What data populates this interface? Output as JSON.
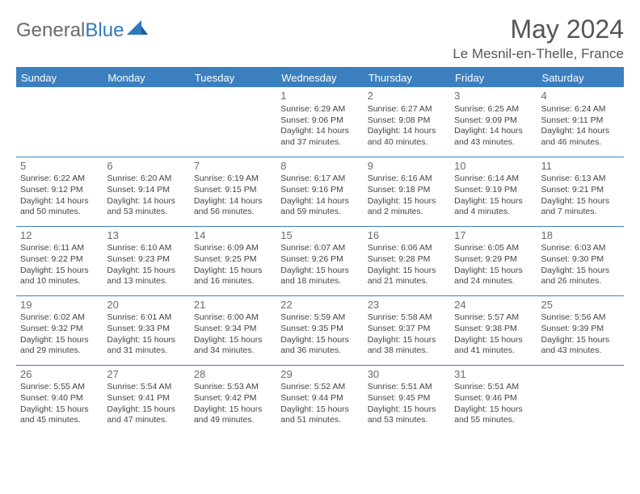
{
  "logo": {
    "general": "General",
    "blue": "Blue"
  },
  "title": "May 2024",
  "location": "Le Mesnil-en-Thelle, France",
  "header_bg": "#3b7fbf",
  "header_fg": "#ffffff",
  "text_color": "#444444",
  "daynum_color": "#6a6a6a",
  "columns": [
    "Sunday",
    "Monday",
    "Tuesday",
    "Wednesday",
    "Thursday",
    "Friday",
    "Saturday"
  ],
  "weeks": [
    [
      null,
      null,
      null,
      {
        "n": "1",
        "sunrise": "6:29 AM",
        "sunset": "9:06 PM",
        "day_h": "14",
        "day_m": "37"
      },
      {
        "n": "2",
        "sunrise": "6:27 AM",
        "sunset": "9:08 PM",
        "day_h": "14",
        "day_m": "40"
      },
      {
        "n": "3",
        "sunrise": "6:25 AM",
        "sunset": "9:09 PM",
        "day_h": "14",
        "day_m": "43"
      },
      {
        "n": "4",
        "sunrise": "6:24 AM",
        "sunset": "9:11 PM",
        "day_h": "14",
        "day_m": "46"
      }
    ],
    [
      {
        "n": "5",
        "sunrise": "6:22 AM",
        "sunset": "9:12 PM",
        "day_h": "14",
        "day_m": "50"
      },
      {
        "n": "6",
        "sunrise": "6:20 AM",
        "sunset": "9:14 PM",
        "day_h": "14",
        "day_m": "53"
      },
      {
        "n": "7",
        "sunrise": "6:19 AM",
        "sunset": "9:15 PM",
        "day_h": "14",
        "day_m": "56"
      },
      {
        "n": "8",
        "sunrise": "6:17 AM",
        "sunset": "9:16 PM",
        "day_h": "14",
        "day_m": "59"
      },
      {
        "n": "9",
        "sunrise": "6:16 AM",
        "sunset": "9:18 PM",
        "day_h": "15",
        "day_m": "2"
      },
      {
        "n": "10",
        "sunrise": "6:14 AM",
        "sunset": "9:19 PM",
        "day_h": "15",
        "day_m": "4"
      },
      {
        "n": "11",
        "sunrise": "6:13 AM",
        "sunset": "9:21 PM",
        "day_h": "15",
        "day_m": "7"
      }
    ],
    [
      {
        "n": "12",
        "sunrise": "6:11 AM",
        "sunset": "9:22 PM",
        "day_h": "15",
        "day_m": "10"
      },
      {
        "n": "13",
        "sunrise": "6:10 AM",
        "sunset": "9:23 PM",
        "day_h": "15",
        "day_m": "13"
      },
      {
        "n": "14",
        "sunrise": "6:09 AM",
        "sunset": "9:25 PM",
        "day_h": "15",
        "day_m": "16"
      },
      {
        "n": "15",
        "sunrise": "6:07 AM",
        "sunset": "9:26 PM",
        "day_h": "15",
        "day_m": "18"
      },
      {
        "n": "16",
        "sunrise": "6:06 AM",
        "sunset": "9:28 PM",
        "day_h": "15",
        "day_m": "21"
      },
      {
        "n": "17",
        "sunrise": "6:05 AM",
        "sunset": "9:29 PM",
        "day_h": "15",
        "day_m": "24"
      },
      {
        "n": "18",
        "sunrise": "6:03 AM",
        "sunset": "9:30 PM",
        "day_h": "15",
        "day_m": "26"
      }
    ],
    [
      {
        "n": "19",
        "sunrise": "6:02 AM",
        "sunset": "9:32 PM",
        "day_h": "15",
        "day_m": "29"
      },
      {
        "n": "20",
        "sunrise": "6:01 AM",
        "sunset": "9:33 PM",
        "day_h": "15",
        "day_m": "31"
      },
      {
        "n": "21",
        "sunrise": "6:00 AM",
        "sunset": "9:34 PM",
        "day_h": "15",
        "day_m": "34"
      },
      {
        "n": "22",
        "sunrise": "5:59 AM",
        "sunset": "9:35 PM",
        "day_h": "15",
        "day_m": "36"
      },
      {
        "n": "23",
        "sunrise": "5:58 AM",
        "sunset": "9:37 PM",
        "day_h": "15",
        "day_m": "38"
      },
      {
        "n": "24",
        "sunrise": "5:57 AM",
        "sunset": "9:38 PM",
        "day_h": "15",
        "day_m": "41"
      },
      {
        "n": "25",
        "sunrise": "5:56 AM",
        "sunset": "9:39 PM",
        "day_h": "15",
        "day_m": "43"
      }
    ],
    [
      {
        "n": "26",
        "sunrise": "5:55 AM",
        "sunset": "9:40 PM",
        "day_h": "15",
        "day_m": "45"
      },
      {
        "n": "27",
        "sunrise": "5:54 AM",
        "sunset": "9:41 PM",
        "day_h": "15",
        "day_m": "47"
      },
      {
        "n": "28",
        "sunrise": "5:53 AM",
        "sunset": "9:42 PM",
        "day_h": "15",
        "day_m": "49"
      },
      {
        "n": "29",
        "sunrise": "5:52 AM",
        "sunset": "9:44 PM",
        "day_h": "15",
        "day_m": "51"
      },
      {
        "n": "30",
        "sunrise": "5:51 AM",
        "sunset": "9:45 PM",
        "day_h": "15",
        "day_m": "53"
      },
      {
        "n": "31",
        "sunrise": "5:51 AM",
        "sunset": "9:46 PM",
        "day_h": "15",
        "day_m": "55"
      },
      null
    ]
  ],
  "labels": {
    "sunrise": "Sunrise:",
    "sunset": "Sunset:",
    "daylight": "Daylight:",
    "hours": "hours",
    "and": "and",
    "minutes": "minutes."
  }
}
